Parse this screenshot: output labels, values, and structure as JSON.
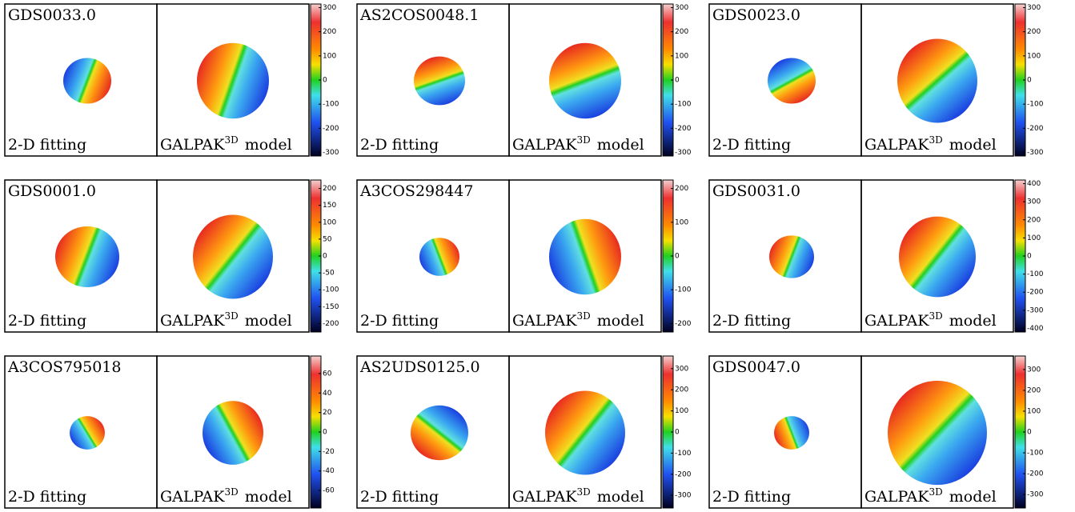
{
  "panels": [
    {
      "name": "GDS0033.0",
      "fit_label": "2-D fitting",
      "model_label": {
        "text": "GALPAK",
        "sup": "3D",
        "suffix": "model"
      },
      "colorbar": {
        "lim": [
          -315,
          315
        ],
        "ticks": [
          300,
          200,
          100,
          0,
          -100,
          -200,
          -300
        ]
      }
    },
    {
      "name": "AS2COS0048.1",
      "fit_label": "2-D fitting",
      "model_label": {
        "text": "GALPAK",
        "sup": "3D",
        "suffix": "model"
      },
      "colorbar": {
        "lim": [
          -315,
          315
        ],
        "ticks": [
          300,
          200,
          100,
          0,
          -100,
          -200,
          -300
        ]
      }
    },
    {
      "name": "GDS0023.0",
      "fit_label": "2-D fitting",
      "model_label": {
        "text": "GALPAK",
        "sup": "3D",
        "suffix": "model"
      },
      "colorbar": {
        "lim": [
          -315,
          315
        ],
        "ticks": [
          300,
          200,
          100,
          0,
          -100,
          -200,
          -300
        ]
      }
    },
    {
      "name": "GDS0001.0",
      "fit_label": "2-D fitting",
      "model_label": {
        "text": "GALPAK",
        "sup": "3D",
        "suffix": "model"
      },
      "colorbar": {
        "lim": [
          -225,
          225
        ],
        "ticks": [
          200,
          150,
          100,
          50,
          0,
          -50,
          -100,
          -150,
          -200
        ]
      }
    },
    {
      "name": "A3COS298447",
      "fit_label": "2-D fitting",
      "model_label": {
        "text": "GALPAK",
        "sup": "3D",
        "suffix": "model"
      },
      "colorbar": {
        "lim": [
          -225,
          225
        ],
        "ticks": [
          200,
          100,
          0,
          -100,
          -200
        ]
      }
    },
    {
      "name": "GDS0031.0",
      "fit_label": "2-D fitting",
      "model_label": {
        "text": "GALPAK",
        "sup": "3D",
        "suffix": "model"
      },
      "colorbar": {
        "lim": [
          -420,
          420
        ],
        "ticks": [
          400,
          300,
          200,
          100,
          0,
          -100,
          -200,
          -300,
          -400
        ]
      }
    },
    {
      "name": "A3COS795018",
      "fit_label": "2-D fitting",
      "model_label": {
        "text": "GALPAK",
        "sup": "3D",
        "suffix": "model"
      },
      "colorbar": {
        "lim": [
          -78,
          78
        ],
        "ticks": [
          60,
          40,
          20,
          0,
          -20,
          -40,
          -60
        ]
      }
    },
    {
      "name": "AS2UDS0125.0",
      "fit_label": "2-D fitting",
      "model_label": {
        "text": "GALPAK",
        "sup": "3D",
        "suffix": "model"
      },
      "colorbar": {
        "lim": [
          -360,
          360
        ],
        "ticks": [
          300,
          200,
          100,
          0,
          -100,
          -200,
          -300
        ]
      }
    },
    {
      "name": "GDS0047.0",
      "fit_label": "2-D fitting",
      "model_label": {
        "text": "GALPAK",
        "sup": "3D",
        "suffix": "model"
      },
      "colorbar": {
        "lim": [
          -365,
          365
        ],
        "ticks": [
          300,
          200,
          100,
          0,
          -100,
          -200,
          -300
        ]
      }
    }
  ]
}
